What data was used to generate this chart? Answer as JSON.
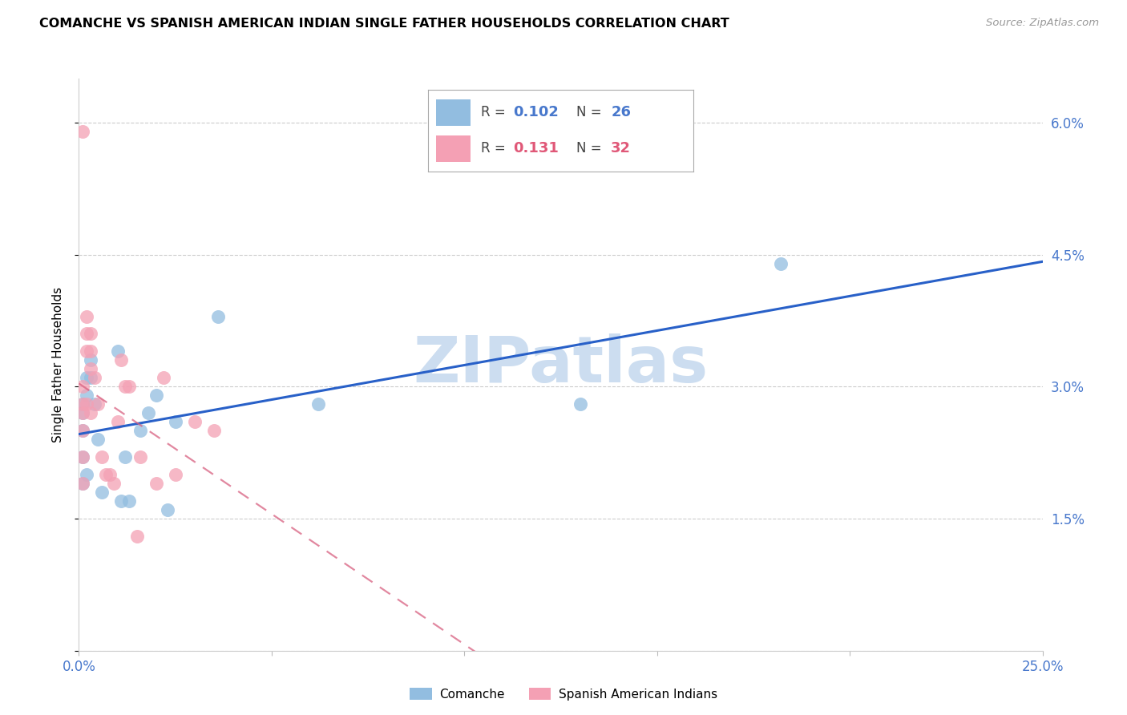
{
  "title": "COMANCHE VS SPANISH AMERICAN INDIAN SINGLE FATHER HOUSEHOLDS CORRELATION CHART",
  "source": "Source: ZipAtlas.com",
  "ylabel": "Single Father Households",
  "x_min": 0.0,
  "x_max": 0.25,
  "y_min": 0.0,
  "y_max": 0.065,
  "x_ticks": [
    0.0,
    0.05,
    0.1,
    0.15,
    0.2,
    0.25
  ],
  "x_tick_labels": [
    "0.0%",
    "",
    "",
    "",
    "",
    "25.0%"
  ],
  "y_ticks": [
    0.0,
    0.015,
    0.03,
    0.045,
    0.06
  ],
  "y_tick_labels": [
    "",
    "1.5%",
    "3.0%",
    "4.5%",
    "6.0%"
  ],
  "legend_blue_R": "0.102",
  "legend_blue_N": "26",
  "legend_pink_R": "0.131",
  "legend_pink_N": "32",
  "blue_dot_color": "#92bde0",
  "pink_dot_color": "#f4a0b4",
  "blue_line_color": "#2860c8",
  "pink_line_color": "#d86080",
  "tick_color": "#4878cc",
  "watermark_color": "#ccddf0",
  "comanche_x": [
    0.001,
    0.001,
    0.001,
    0.001,
    0.001,
    0.002,
    0.002,
    0.002,
    0.003,
    0.003,
    0.004,
    0.005,
    0.006,
    0.01,
    0.011,
    0.012,
    0.013,
    0.016,
    0.018,
    0.02,
    0.023,
    0.025,
    0.036,
    0.062,
    0.13,
    0.182
  ],
  "comanche_y": [
    0.028,
    0.027,
    0.025,
    0.022,
    0.019,
    0.031,
    0.029,
    0.02,
    0.033,
    0.031,
    0.028,
    0.024,
    0.018,
    0.034,
    0.017,
    0.022,
    0.017,
    0.025,
    0.027,
    0.029,
    0.016,
    0.026,
    0.038,
    0.028,
    0.028,
    0.044
  ],
  "spanish_x": [
    0.001,
    0.001,
    0.001,
    0.001,
    0.001,
    0.001,
    0.001,
    0.002,
    0.002,
    0.002,
    0.002,
    0.003,
    0.003,
    0.003,
    0.003,
    0.004,
    0.005,
    0.006,
    0.007,
    0.008,
    0.009,
    0.01,
    0.011,
    0.012,
    0.013,
    0.015,
    0.016,
    0.02,
    0.022,
    0.025,
    0.03,
    0.035
  ],
  "spanish_y": [
    0.059,
    0.03,
    0.028,
    0.027,
    0.025,
    0.022,
    0.019,
    0.038,
    0.036,
    0.034,
    0.028,
    0.036,
    0.034,
    0.032,
    0.027,
    0.031,
    0.028,
    0.022,
    0.02,
    0.02,
    0.019,
    0.026,
    0.033,
    0.03,
    0.03,
    0.013,
    0.022,
    0.019,
    0.031,
    0.02,
    0.026,
    0.025
  ]
}
